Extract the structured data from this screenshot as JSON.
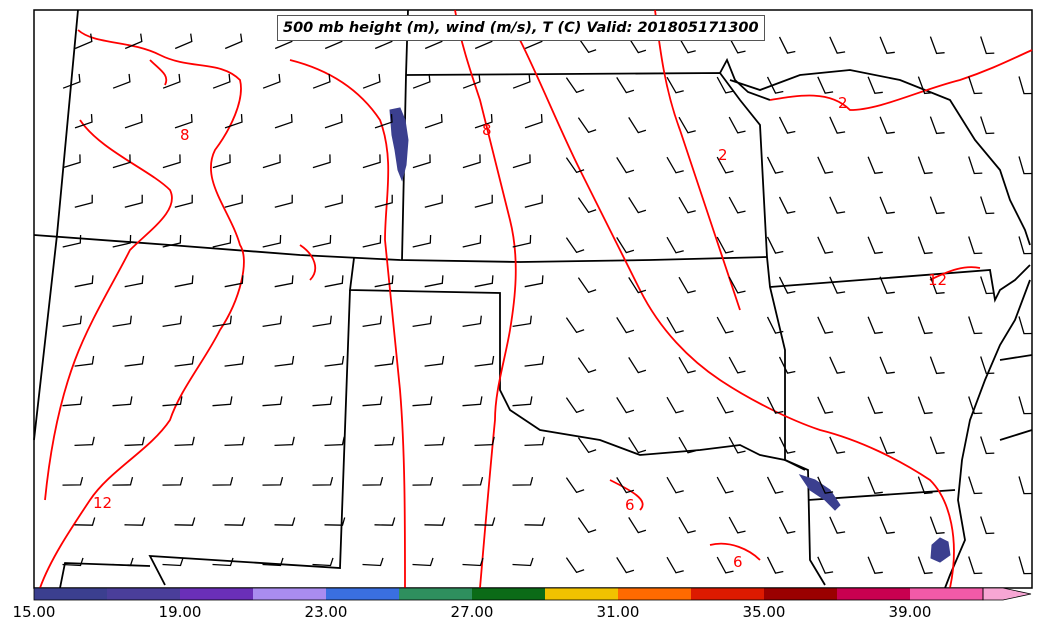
{
  "title": "500 mb height (m), wind (m/s), T (C) Valid: 201805171300",
  "temperature_contour_labels": [
    "8",
    "8",
    "2",
    "2",
    "12",
    "12",
    "6",
    "6"
  ],
  "colorbar": {
    "tick_labels": [
      "15.00",
      "19.00",
      "23.00",
      "27.00",
      "31.00",
      "35.00",
      "39.00"
    ],
    "colors": [
      "#3b3f8f",
      "#4a3e9a",
      "#6a2fb8",
      "#a98cf0",
      "#3a6fe0",
      "#2e8f5e",
      "#0b6b17",
      "#f1c200",
      "#ff6a00",
      "#dd1a00",
      "#9a0000",
      "#c80050",
      "#f25aa8",
      "#f7a6d4"
    ],
    "extend": "max"
  },
  "colors": {
    "temperature_contour": "#ff0000",
    "boundaries": "#000000",
    "shaded_wind": "#3b3f8f"
  }
}
